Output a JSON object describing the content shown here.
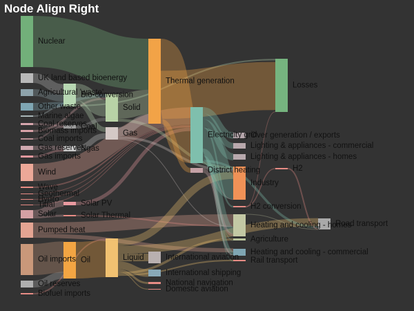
{
  "chart_data": {
    "type": "sankey",
    "title": "Node Align Right",
    "nodes": [
      {
        "id": "nuclear",
        "label": "Nuclear",
        "color": "#72b07a"
      },
      {
        "id": "uk_bio",
        "label": "UK land based bioenergy",
        "color": "#b9b9b9"
      },
      {
        "id": "agri_waste",
        "label": "Agricultural 'waste'",
        "color": "#8ea3ab"
      },
      {
        "id": "other_waste",
        "label": "Other waste",
        "color": "#7fa6b3"
      },
      {
        "id": "marine_algae",
        "label": "Marine algae",
        "color": "#a9b7b8"
      },
      {
        "id": "coal_reserves",
        "label": "Coal reserves",
        "color": "#d6a6ad"
      },
      {
        "id": "biomass_imports",
        "label": "Biomass imports",
        "color": "#d9a3a8"
      },
      {
        "id": "coal_imports",
        "label": "Coal imports",
        "color": "#b98f94"
      },
      {
        "id": "gas_reserves",
        "label": "Gas reserves",
        "color": "#d0a9b0"
      },
      {
        "id": "gas_imports",
        "label": "Gas imports",
        "color": "#e2989d"
      },
      {
        "id": "wind",
        "label": "Wind",
        "color": "#eda898"
      },
      {
        "id": "wave",
        "label": "Wave",
        "color": "#e88c85"
      },
      {
        "id": "geothermal",
        "label": "Geothermal",
        "color": "#e88c85"
      },
      {
        "id": "hydro",
        "label": "Hydro",
        "color": "#e88c85"
      },
      {
        "id": "tidal",
        "label": "Tidal",
        "color": "#e88c85"
      },
      {
        "id": "solar",
        "label": "Solar",
        "color": "#d4a1a4"
      },
      {
        "id": "pumped_heat",
        "label": "Pumped heat",
        "color": "#e4a492"
      },
      {
        "id": "oil_imports",
        "label": "Oil imports",
        "color": "#c9987a"
      },
      {
        "id": "oil_reserves",
        "label": "Oil reserves",
        "color": "#b0b0b0"
      },
      {
        "id": "biofuel_imports",
        "label": "Biofuel imports",
        "color": "#e88c85"
      },
      {
        "id": "bio_conversion",
        "label": "Bio-conversion",
        "color": "#b8d8b3"
      },
      {
        "id": "coal",
        "label": "Coal",
        "color": "#9a9a9a"
      },
      {
        "id": "ngas",
        "label": "Ngas",
        "color": "#c9c9c9"
      },
      {
        "id": "solar_pv",
        "label": "Solar PV",
        "color": "#e99aa0"
      },
      {
        "id": "solar_thermal",
        "label": "Solar Thermal",
        "color": "#e88c85"
      },
      {
        "id": "oil",
        "label": "Oil",
        "color": "#f3a543"
      },
      {
        "id": "solid",
        "label": "Solid",
        "color": "#b8d2a6"
      },
      {
        "id": "gas",
        "label": "Gas",
        "color": "#d4c9c6"
      },
      {
        "id": "liquid",
        "label": "Liquid",
        "color": "#f1c171"
      },
      {
        "id": "thermal_generation",
        "label": "Thermal generation",
        "color": "#f2a347"
      },
      {
        "id": "electricity_grid",
        "label": "Electricity grid",
        "color": "#7fbfad"
      },
      {
        "id": "district_heating",
        "label": "District heating",
        "color": "#c4a0a5"
      },
      {
        "id": "losses",
        "label": "Losses",
        "color": "#76b47f"
      },
      {
        "id": "over_generation",
        "label": "Over generation / exports",
        "color": "#b7a8ad"
      },
      {
        "id": "lighting_commercial",
        "label": "Lighting & appliances - commercial",
        "color": "#b9a8ac"
      },
      {
        "id": "lighting_homes",
        "label": "Lighting & appliances - homes",
        "color": "#b8a9ad"
      },
      {
        "id": "h2",
        "label": "H2",
        "color": "#e88c85"
      },
      {
        "id": "industry",
        "label": "Industry",
        "color": "#f09257"
      },
      {
        "id": "h2_conversion",
        "label": "H2 conversion",
        "color": "#e88c85"
      },
      {
        "id": "heating_homes",
        "label": "Heating and cooling - homes",
        "color": "#c3c8a4"
      },
      {
        "id": "road_transport",
        "label": "Road transport",
        "color": "#a9a9a9"
      },
      {
        "id": "agriculture",
        "label": "Agriculture",
        "color": "#b8c19a"
      },
      {
        "id": "heating_commercial",
        "label": "Heating and cooling - commercial",
        "color": "#7fa6b3"
      },
      {
        "id": "rail_transport",
        "label": "Rail transport",
        "color": "#e88c85"
      },
      {
        "id": "international_aviation",
        "label": "International aviation",
        "color": "#b9b0b0"
      },
      {
        "id": "international_shipping",
        "label": "International shipping",
        "color": "#89a9b8"
      },
      {
        "id": "national_navigation",
        "label": "National navigation",
        "color": "#e88c85"
      },
      {
        "id": "domestic_aviation",
        "label": "Domestic aviation",
        "color": "#e88c85"
      }
    ],
    "links": [
      {
        "source": "nuclear",
        "target": "thermal_generation",
        "value": 839
      },
      {
        "source": "uk_bio",
        "target": "bio_conversion",
        "value": 182
      },
      {
        "source": "agri_waste",
        "target": "bio_conversion",
        "value": 124
      },
      {
        "source": "other_waste",
        "target": "bio_conversion",
        "value": 77
      },
      {
        "source": "other_waste",
        "target": "solid",
        "value": 56
      },
      {
        "source": "marine_algae",
        "target": "bio_conversion",
        "value": 4
      },
      {
        "source": "coal_reserves",
        "target": "coal",
        "value": 36
      },
      {
        "source": "biomass_imports",
        "target": "solid",
        "value": 35
      },
      {
        "source": "coal_imports",
        "target": "coal",
        "value": 11
      },
      {
        "source": "gas_reserves",
        "target": "ngas",
        "value": 82
      },
      {
        "source": "gas_imports",
        "target": "ngas",
        "value": 40
      },
      {
        "source": "wind",
        "target": "electricity_grid",
        "value": 290
      },
      {
        "source": "wave",
        "target": "electricity_grid",
        "value": 20
      },
      {
        "source": "geothermal",
        "target": "electricity_grid",
        "value": 7
      },
      {
        "source": "hydro",
        "target": "electricity_grid",
        "value": 7
      },
      {
        "source": "tidal",
        "target": "electricity_grid",
        "value": 10
      },
      {
        "source": "solar",
        "target": "solar_pv",
        "value": 60
      },
      {
        "source": "solar",
        "target": "solar_thermal",
        "value": 20
      },
      {
        "source": "pumped_heat",
        "target": "heating_homes",
        "value": 193
      },
      {
        "source": "pumped_heat",
        "target": "heating_commercial",
        "value": 70
      },
      {
        "source": "oil_imports",
        "target": "oil",
        "value": 504
      },
      {
        "source": "oil_reserves",
        "target": "oil",
        "value": 107
      },
      {
        "source": "biofuel_imports",
        "target": "liquid",
        "value": 35
      },
      {
        "source": "bio_conversion",
        "target": "solid",
        "value": 280
      },
      {
        "source": "bio_conversion",
        "target": "gas",
        "value": 81
      },
      {
        "source": "bio_conversion",
        "target": "losses",
        "value": 26
      },
      {
        "source": "coal",
        "target": "solid",
        "value": 75
      },
      {
        "source": "ngas",
        "target": "gas",
        "value": 122
      },
      {
        "source": "solar_pv",
        "target": "electricity_grid",
        "value": 60
      },
      {
        "source": "solar_thermal",
        "target": "heating_homes",
        "value": 20
      },
      {
        "source": "oil",
        "target": "liquid",
        "value": 611
      },
      {
        "source": "solid",
        "target": "thermal_generation",
        "value": 400
      },
      {
        "source": "solid",
        "target": "industry",
        "value": 46
      },
      {
        "source": "gas",
        "target": "thermal_generation",
        "value": 151
      },
      {
        "source": "gas",
        "target": "industry",
        "value": 40
      },
      {
        "source": "gas",
        "target": "heating_homes",
        "value": 12
      },
      {
        "source": "liquid",
        "target": "industry",
        "value": 121
      },
      {
        "source": "liquid",
        "target": "road_transport",
        "value": 135
      },
      {
        "source": "liquid",
        "target": "international_aviation",
        "value": 128
      },
      {
        "source": "liquid",
        "target": "international_shipping",
        "value": 128
      },
      {
        "source": "liquid",
        "target": "national_navigation",
        "value": 34
      },
      {
        "source": "liquid",
        "target": "domestic_aviation",
        "value": 15
      },
      {
        "source": "liquid",
        "target": "agriculture",
        "value": 40
      },
      {
        "source": "liquid",
        "target": "rail_transport",
        "value": 25
      },
      {
        "source": "thermal_generation",
        "target": "electricity_grid",
        "value": 525
      },
      {
        "source": "thermal_generation",
        "target": "losses",
        "value": 787
      },
      {
        "source": "thermal_generation",
        "target": "district_heating",
        "value": 79
      },
      {
        "source": "electricity_grid",
        "target": "over_generation",
        "value": 104
      },
      {
        "source": "electricity_grid",
        "target": "lighting_commercial",
        "value": 93
      },
      {
        "source": "electricity_grid",
        "target": "lighting_homes",
        "value": 114
      },
      {
        "source": "electricity_grid",
        "target": "h2_conversion",
        "value": 27
      },
      {
        "source": "electricity_grid",
        "target": "industry",
        "value": 342
      },
      {
        "source": "electricity_grid",
        "target": "heating_homes",
        "value": 113
      },
      {
        "source": "electricity_grid",
        "target": "heating_commercial",
        "value": 70
      },
      {
        "source": "electricity_grid",
        "target": "road_transport",
        "value": 40
      },
      {
        "source": "electricity_grid",
        "target": "rail_transport",
        "value": 5
      },
      {
        "source": "electricity_grid",
        "target": "agriculture",
        "value": 5
      },
      {
        "source": "district_heating",
        "target": "industry",
        "value": 10
      },
      {
        "source": "district_heating",
        "target": "heating_homes",
        "value": 46
      },
      {
        "source": "district_heating",
        "target": "heating_commercial",
        "value": 22
      },
      {
        "source": "h2_conversion",
        "target": "h2",
        "value": 20
      },
      {
        "source": "h2_conversion",
        "target": "losses",
        "value": 7
      },
      {
        "source": "h2",
        "target": "road_transport",
        "value": 20
      },
      {
        "source": "heating_homes",
        "target": "road_transport",
        "value": 1
      }
    ]
  }
}
